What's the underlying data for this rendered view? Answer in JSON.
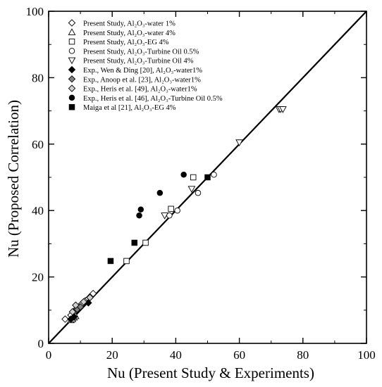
{
  "chart_data": {
    "type": "scatter",
    "xlabel": "Nu (Present Study & Experiments)",
    "ylabel": "Nu (Proposed Correlation)",
    "xlim": [
      0,
      100
    ],
    "ylim": [
      0,
      100
    ],
    "xticks": [
      "0",
      "20",
      "40",
      "60",
      "80",
      "100"
    ],
    "yticks": [
      "0",
      "20",
      "40",
      "60",
      "80",
      "100"
    ],
    "grid": false,
    "legend_position": "top-left",
    "reference_line": {
      "x": [
        0,
        100
      ],
      "y": [
        0,
        100
      ]
    },
    "series": [
      {
        "name": "Present Study, Al₂O₃-water 1%",
        "marker": "diamond",
        "fill": "none",
        "x": [
          5.2,
          7.0,
          8.0,
          8.8,
          9.5,
          10.5,
          11.5,
          12.5,
          13.5,
          14.0
        ],
        "y": [
          7.3,
          8.5,
          9.5,
          10.5,
          11.0,
          12.0,
          12.8,
          13.5,
          14.5,
          15.0
        ]
      },
      {
        "name": "Present Study, Al₂O₃-water 4%",
        "marker": "triangle-up",
        "fill": "none",
        "x": [
          7.0,
          7.5,
          8.0,
          8.5
        ],
        "y": [
          7.0,
          7.3,
          7.8,
          8.2
        ]
      },
      {
        "name": "Present Study, Al₂O₃-EG 4%",
        "marker": "square",
        "fill": "none",
        "x": [
          24.5,
          30.5,
          38.5,
          45.5
        ],
        "y": [
          24.8,
          30.3,
          40.5,
          50.0
        ]
      },
      {
        "name": "Present Study, Al₂O₃-Turbine Oil 0.5%",
        "marker": "circle",
        "fill": "none",
        "x": [
          38.0,
          40.5,
          47.0,
          52.0
        ],
        "y": [
          38.5,
          40.0,
          45.3,
          50.8
        ]
      },
      {
        "name": "Present Study, Al₂O₃-Turbine Oil 4%",
        "marker": "triangle-down",
        "fill": "none",
        "x": [
          36.5,
          45.0,
          60.0,
          72.5,
          73.0,
          73.7
        ],
        "y": [
          38.5,
          46.5,
          60.5,
          70.5,
          70.5,
          70.5
        ]
      },
      {
        "name": "Exp., Wen & Ding [20], Al₂O₃-water1%",
        "marker": "diamond",
        "fill": "#000000",
        "x": [
          7.0,
          8.0,
          12.5
        ],
        "y": [
          7.3,
          8.0,
          12.2
        ]
      },
      {
        "name": "Exp., Anoop et al. [23], Al₂O₃-water1%",
        "marker": "diamond",
        "fill": "#808080",
        "x": [
          9.0,
          10.0
        ],
        "y": [
          10.3,
          11.0
        ]
      },
      {
        "name": "Exp., Heris et al. [49], Al₂O₃-water1%",
        "marker": "diamond",
        "fill": "#d0d0d0",
        "x": [
          7.5,
          8.5,
          11.0,
          13.0
        ],
        "y": [
          9.5,
          11.5,
          12.5,
          13.8
        ]
      },
      {
        "name": "Exp., Heris et al. [46], Al₂O₃-Turbine Oil 0.5%",
        "marker": "circle",
        "fill": "#000000",
        "x": [
          28.5,
          29.0,
          35.0,
          42.5
        ],
        "y": [
          38.5,
          40.3,
          45.3,
          50.8
        ]
      },
      {
        "name": "Maiga et al [21], Al₂O₃-EG 4%",
        "marker": "square",
        "fill": "#000000",
        "x": [
          19.5,
          27.0,
          50.0
        ],
        "y": [
          24.8,
          30.3,
          50.0
        ]
      }
    ]
  }
}
